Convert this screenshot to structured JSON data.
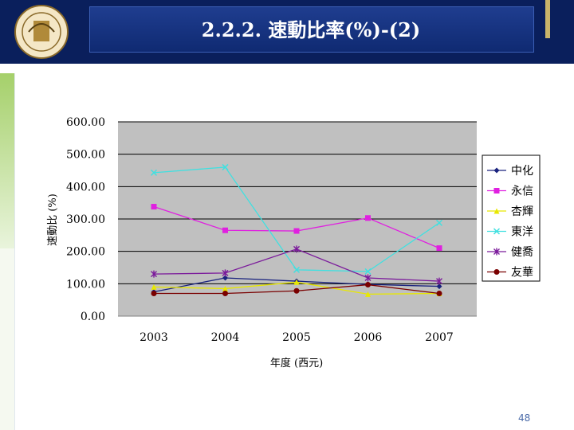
{
  "slide": {
    "title": "2.2.2. 速動比率(%)-(2)",
    "page_number": "48"
  },
  "colors": {
    "header_bg": "#0a1f5c",
    "plot_bg": "#c0c0c0"
  },
  "chart_data": {
    "type": "line",
    "xlabel": "年度 (西元)",
    "ylabel": "速動比 (%)",
    "categories": [
      "2003",
      "2004",
      "2005",
      "2006",
      "2007"
    ],
    "ylim": [
      0,
      600
    ],
    "yticks": [
      "0.00",
      "100.00",
      "200.00",
      "300.00",
      "400.00",
      "500.00",
      "600.00"
    ],
    "grid": "horizontal",
    "legend_position": "right",
    "series": [
      {
        "name": "中化",
        "color": "#1a237e",
        "marker": "diamond",
        "values": [
          75,
          118,
          108,
          98,
          92
        ]
      },
      {
        "name": "永信",
        "color": "#e020e0",
        "marker": "square",
        "values": [
          338,
          265,
          263,
          303,
          210
        ]
      },
      {
        "name": "杏輝",
        "color": "#e8e800",
        "marker": "triangle",
        "values": [
          90,
          85,
          105,
          68,
          70
        ]
      },
      {
        "name": "東洋",
        "color": "#40e0e0",
        "marker": "x",
        "values": [
          443,
          460,
          143,
          138,
          288
        ]
      },
      {
        "name": "健喬",
        "color": "#7b1a9b",
        "marker": "star",
        "values": [
          130,
          133,
          207,
          118,
          108
        ]
      },
      {
        "name": "友華",
        "color": "#7a0000",
        "marker": "circle",
        "values": [
          70,
          70,
          78,
          97,
          70
        ]
      }
    ]
  }
}
